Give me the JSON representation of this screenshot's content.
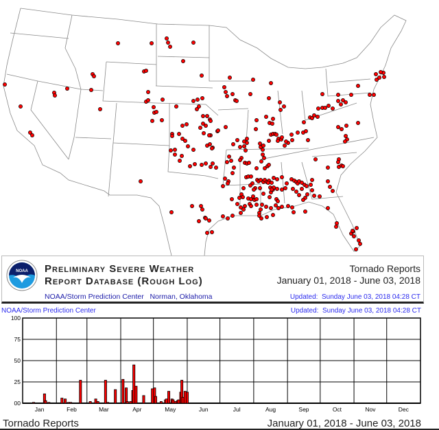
{
  "header": {
    "title_line1": "Preliminary Severe Weather",
    "title_line2": "Report Database (Rough Log)",
    "source": "NOAA/Storm Prediction Center   Norman, Oklahoma",
    "report_type": "Tornado Reports",
    "date_range": "January 01, 2018 - June 03, 2018",
    "updated": "Updated:  Sunday June 03, 2018 04:28 CT",
    "logo_text": "NOAA"
  },
  "chart_header": {
    "source": "NOAA/Storm Prediction Center",
    "updated": "Updated:  Sunday June 03, 2018 04:28 CT"
  },
  "footer": {
    "report_type": "Tornado Reports",
    "date_range": "January 01, 2018 - June 03, 2018"
  },
  "colors": {
    "report_dot": "#ff0000",
    "bar": "#ff0000",
    "header_link": "#2a2aee"
  },
  "chart_data": {
    "type": "bar",
    "year": 2018,
    "ylim": [
      0,
      100
    ],
    "yticks": [
      "100",
      "75",
      "50",
      "25",
      "00"
    ],
    "ytick_values": [
      100,
      75,
      50,
      25,
      0
    ],
    "months": [
      "Jan",
      "Feb",
      "Mar",
      "Apr",
      "May",
      "Jun",
      "Jul",
      "Aug",
      "Sep",
      "Oct",
      "Nov",
      "Dec"
    ],
    "grid": true,
    "x": [
      "01-11",
      "01-21",
      "01-22",
      "01-25",
      "02-06",
      "02-09",
      "02-12",
      "02-14",
      "02-23",
      "03-04",
      "03-09",
      "03-11",
      "03-18",
      "03-20",
      "03-27",
      "04-03",
      "04-06",
      "04-07",
      "04-10",
      "04-12",
      "04-13",
      "04-15",
      "04-22",
      "04-30",
      "05-02",
      "05-03",
      "05-08",
      "05-12",
      "05-13",
      "05-15",
      "05-18",
      "05-19",
      "05-21",
      "05-23",
      "05-24",
      "05-26",
      "05-27",
      "05-28",
      "05-30",
      "06-01"
    ],
    "values": [
      1,
      11,
      3,
      1,
      6,
      5,
      1,
      1,
      27,
      2,
      5,
      2,
      27,
      1,
      16,
      28,
      18,
      2,
      2,
      15,
      45,
      20,
      9,
      17,
      18,
      8,
      2,
      4,
      5,
      14,
      5,
      4,
      2,
      3,
      4,
      13,
      27,
      7,
      14,
      13
    ]
  }
}
